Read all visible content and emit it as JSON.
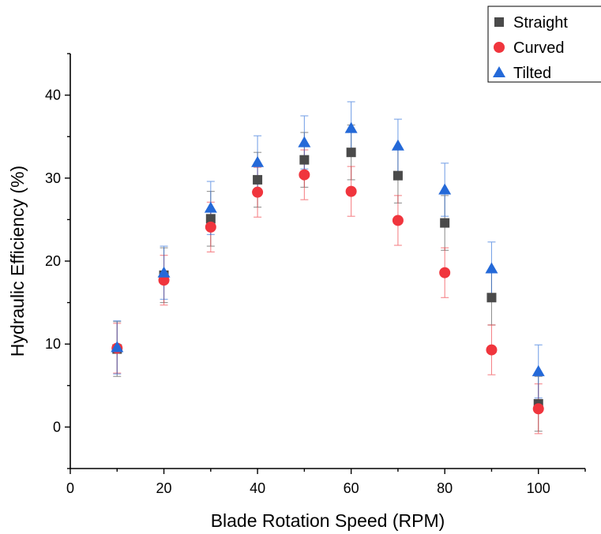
{
  "chart_data": {
    "type": "scatter",
    "xlabel": "Blade Rotation Speed (RPM)",
    "ylabel": "Hydraulic Efficiency (%)",
    "xlim": [
      0,
      110
    ],
    "ylim": [
      -5,
      45
    ],
    "xticks": [
      0,
      20,
      40,
      60,
      80,
      100
    ],
    "yticks": [
      0,
      10,
      20,
      30,
      40
    ],
    "grid": false,
    "legend_position": "top-right",
    "x": [
      10,
      20,
      30,
      40,
      50,
      60,
      70,
      80,
      90,
      100
    ],
    "series": [
      {
        "name": "Straight",
        "marker": "square",
        "color": "#4a4a4a",
        "values": [
          9.4,
          18.3,
          25.1,
          29.8,
          32.2,
          33.1,
          30.3,
          24.6,
          15.6,
          2.8
        ],
        "error": [
          3.3,
          3.3,
          3.3,
          3.3,
          3.3,
          3.3,
          3.3,
          3.3,
          3.3,
          3.3
        ]
      },
      {
        "name": "Curved",
        "marker": "circle",
        "color": "#f0353d",
        "values": [
          9.5,
          17.7,
          24.1,
          28.3,
          30.4,
          28.4,
          24.9,
          18.6,
          9.3,
          2.2
        ],
        "error": [
          3.0,
          3.0,
          3.0,
          3.0,
          3.0,
          3.0,
          3.0,
          3.0,
          3.0,
          3.0
        ]
      },
      {
        "name": "Tilted",
        "marker": "triangle",
        "color": "#2469d8",
        "values": [
          9.6,
          18.6,
          26.4,
          31.9,
          34.3,
          36.0,
          33.9,
          28.6,
          19.1,
          6.7
        ],
        "error": [
          3.2,
          3.2,
          3.2,
          3.2,
          3.2,
          3.2,
          3.2,
          3.2,
          3.2,
          3.2
        ]
      }
    ]
  }
}
